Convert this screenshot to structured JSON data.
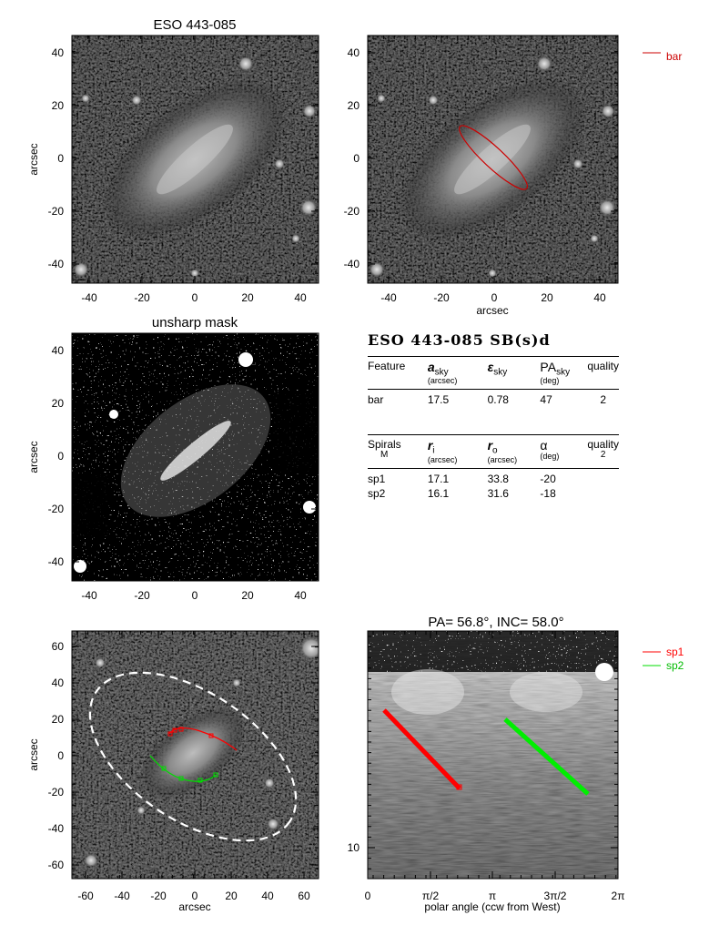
{
  "panels": {
    "top_left": {
      "title": "ESO 443-085",
      "ylabel": "arcsec",
      "xticks": [
        "-40",
        "-20",
        "0",
        "20",
        "40"
      ],
      "yticks": [
        "40",
        "20",
        "0",
        "-20",
        "-40"
      ]
    },
    "top_right": {
      "xlabel": "arcsec",
      "xticks": [
        "-40",
        "-20",
        "0",
        "20",
        "40"
      ],
      "yticks": [
        "40",
        "20",
        "0",
        "-20",
        "-40"
      ],
      "legend": {
        "label": "bar",
        "color": "#cc0000"
      }
    },
    "mid_left": {
      "title": "unsharp mask",
      "ylabel": "arcsec",
      "xticks": [
        "-40",
        "-20",
        "0",
        "20",
        "40"
      ],
      "yticks": [
        "40",
        "20",
        "0",
        "-20",
        "-40"
      ]
    },
    "bottom_left": {
      "xlabel": "arcsec",
      "ylabel": "arcsec",
      "xticks": [
        "-60",
        "-40",
        "-20",
        "0",
        "20",
        "40",
        "60"
      ],
      "yticks": [
        "60",
        "40",
        "20",
        "0",
        "-20",
        "-40",
        "-60"
      ]
    },
    "bottom_right": {
      "title": "PA=  56.8°, INC=  58.0°",
      "xlabel": "polar angle (ccw from West)",
      "xticks": [
        "0",
        "π/2",
        "π",
        "3π/2",
        "2π"
      ],
      "yticks": [
        "10"
      ],
      "legend": [
        {
          "label": "sp1",
          "color": "#ff0000"
        },
        {
          "label": "sp2",
          "color": "#00dd00"
        }
      ]
    }
  },
  "table": {
    "title": "ESO 443-085  SB(s)d",
    "bar_header": {
      "feature": "Feature",
      "a_sym": "a",
      "a_sub": "sky",
      "a_unit": "(arcsec)",
      "e_sym": "ε",
      "e_sub": "sky",
      "pa_sym": "PA",
      "pa_sub": "sky",
      "pa_unit": "(deg)",
      "quality": "quality"
    },
    "bar_row": {
      "feature": "bar",
      "a": "17.5",
      "e": "0.78",
      "pa": "47",
      "quality": "2"
    },
    "spiral_header": {
      "spirals": "Spirals",
      "m": "M",
      "ri_sym": "r",
      "ri_sub": "i",
      "ri_unit": "(arcsec)",
      "ro_sym": "r",
      "ro_sub": "o",
      "ro_unit": "(arcsec)",
      "alpha_sym": "α",
      "alpha_unit": "(deg)",
      "quality": "quality",
      "quality_val": "2"
    },
    "spiral_rows": [
      {
        "name": "sp1",
        "ri": "17.1",
        "ro": "33.8",
        "alpha": "-20"
      },
      {
        "name": "sp2",
        "ri": "16.1",
        "ro": "31.6",
        "alpha": "-18"
      }
    ]
  },
  "colors": {
    "bar": "#cc0000",
    "sp1": "#ff0000",
    "sp2": "#00dd00",
    "ellipse": "#ffffff"
  }
}
